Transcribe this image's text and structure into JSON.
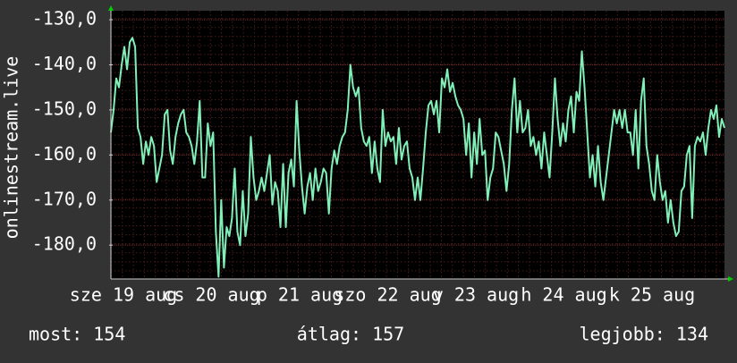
{
  "chart_data": {
    "type": "line",
    "y_label": "onlinestream.live",
    "ylim": [
      -187.5,
      -128.0
    ],
    "yticks": [
      {
        "value": -130,
        "label": "-130,0"
      },
      {
        "value": -140,
        "label": "-140,0"
      },
      {
        "value": -150,
        "label": "-150,0"
      },
      {
        "value": -160,
        "label": "-160,0"
      },
      {
        "value": -170,
        "label": "-170,0"
      },
      {
        "value": -180,
        "label": "-180,0"
      }
    ],
    "x_labels": [
      "sze 19 aug",
      "cs 20 aug",
      "p 21 aug",
      "szo 22 aug",
      "v 23 aug",
      "h 24 aug",
      "k 25 aug"
    ],
    "grid": true,
    "series": [
      {
        "color": "#80f0b8",
        "values": [
          -155,
          -150,
          -143,
          -145,
          -140,
          -136,
          -141,
          -135,
          -134,
          -136,
          -154,
          -156,
          -162,
          -157,
          -160,
          -156,
          -158,
          -166,
          -163,
          -160,
          -151,
          -150,
          -159,
          -162,
          -156,
          -153,
          -151,
          -150,
          -155,
          -156,
          -158,
          -162,
          -157,
          -148,
          -165,
          -165,
          -153,
          -158,
          -155,
          -177,
          -187,
          -170,
          -185,
          -176,
          -178,
          -174,
          -163,
          -177,
          -180,
          -168,
          -178,
          -173,
          -156,
          -165,
          -170,
          -168,
          -165,
          -168,
          -164,
          -160,
          -171,
          -166,
          -168,
          -176,
          -162,
          -176,
          -164,
          -161,
          -167,
          -148,
          -159,
          -167,
          -173,
          -167,
          -164,
          -170,
          -163,
          -168,
          -166,
          -163,
          -164,
          -173,
          -163,
          -159,
          -162,
          -158,
          -156,
          -155,
          -150,
          -140,
          -145,
          -147,
          -145,
          -154,
          -157,
          -158,
          -156,
          -164,
          -157,
          -163,
          -166,
          -150,
          -158,
          -155,
          -157,
          -156,
          -162,
          -154,
          -161,
          -158,
          -157,
          -163,
          -165,
          -170,
          -165,
          -170,
          -163,
          -155,
          -149,
          -148,
          -151,
          -148,
          -155,
          -143,
          -145,
          -141,
          -146,
          -144,
          -147,
          -149,
          -150,
          -152,
          -160,
          -153,
          -165,
          -155,
          -162,
          -152,
          -160,
          -159,
          -170,
          -165,
          -163,
          -155,
          -156,
          -159,
          -162,
          -168,
          -162,
          -150,
          -143,
          -155,
          -148,
          -155,
          -154,
          -150,
          -158,
          -156,
          -160,
          -157,
          -163,
          -155,
          -160,
          -165,
          -155,
          -143,
          -152,
          -158,
          -153,
          -157,
          -150,
          -147,
          -155,
          -146,
          -148,
          -137,
          -145,
          -155,
          -165,
          -160,
          -167,
          -158,
          -166,
          -170,
          -165,
          -160,
          -155,
          -150,
          -153,
          -150,
          -154,
          -150,
          -155,
          -155,
          -160,
          -150,
          -163,
          -148,
          -143,
          -158,
          -162,
          -168,
          -170,
          -160,
          -166,
          -170,
          -168,
          -175,
          -170,
          -175,
          -178,
          -177,
          -168,
          -167,
          -160,
          -158,
          -174,
          -158,
          -156,
          -157,
          -155,
          -160,
          -154,
          -150,
          -152,
          -149,
          -156,
          -152,
          -154
        ]
      }
    ]
  },
  "legend": [
    "most: 154",
    "átlag: 157",
    "legjobb: 134"
  ]
}
